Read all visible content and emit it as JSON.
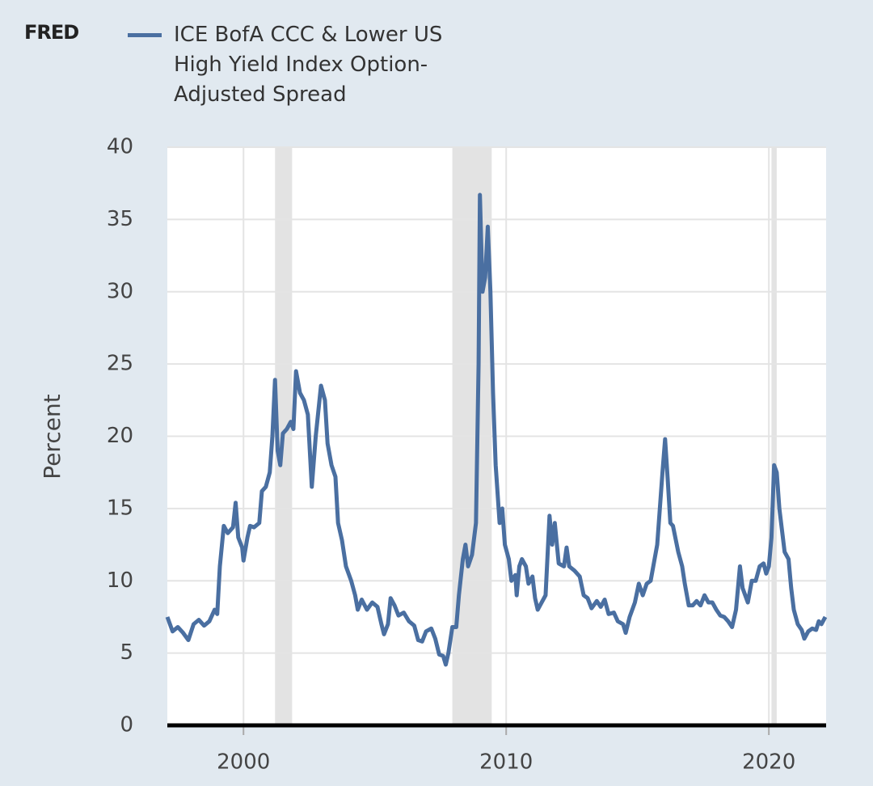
{
  "chart_data": {
    "type": "line",
    "logo": "FRED",
    "ylabel": "Percent",
    "x": [
      1997.1,
      1997.3,
      1997.5,
      1997.7,
      1997.9,
      1998.1,
      1998.3,
      1998.5,
      1998.7,
      1998.9,
      1999.0,
      1999.1,
      1999.25,
      1999.4,
      1999.6,
      1999.7,
      1999.8,
      1999.95,
      2000.0,
      2000.15,
      2000.25,
      2000.4,
      2000.6,
      2000.7,
      2000.85,
      2001.0,
      2001.1,
      2001.2,
      2001.3,
      2001.4,
      2001.5,
      2001.65,
      2001.8,
      2001.9,
      2002.0,
      2002.15,
      2002.3,
      2002.45,
      2002.6,
      2002.75,
      2002.95,
      2003.1,
      2003.2,
      2003.35,
      2003.5,
      2003.6,
      2003.75,
      2003.9,
      2004.1,
      2004.25,
      2004.35,
      2004.5,
      2004.7,
      2004.9,
      2005.1,
      2005.25,
      2005.35,
      2005.5,
      2005.6,
      2005.75,
      2005.9,
      2006.1,
      2006.3,
      2006.5,
      2006.65,
      2006.8,
      2006.95,
      2007.15,
      2007.3,
      2007.45,
      2007.6,
      2007.7,
      2007.8,
      2007.95,
      2008.1,
      2008.2,
      2008.35,
      2008.45,
      2008.55,
      2008.7,
      2008.85,
      2008.95,
      2009.0,
      2009.1,
      2009.2,
      2009.3,
      2009.4,
      2009.5,
      2009.6,
      2009.75,
      2009.85,
      2009.95,
      2010.1,
      2010.2,
      2010.35,
      2010.4,
      2010.5,
      2010.6,
      2010.75,
      2010.85,
      2011.0,
      2011.1,
      2011.2,
      2011.35,
      2011.5,
      2011.65,
      2011.75,
      2011.85,
      2012.0,
      2012.2,
      2012.3,
      2012.4,
      2012.6,
      2012.8,
      2012.95,
      2013.1,
      2013.25,
      2013.45,
      2013.6,
      2013.75,
      2013.9,
      2014.1,
      2014.25,
      2014.45,
      2014.55,
      2014.7,
      2014.9,
      2015.05,
      2015.2,
      2015.35,
      2015.5,
      2015.65,
      2015.75,
      2015.85,
      2015.95,
      2016.05,
      2016.15,
      2016.25,
      2016.35,
      2016.55,
      2016.7,
      2016.8,
      2016.95,
      2017.1,
      2017.25,
      2017.4,
      2017.55,
      2017.7,
      2017.85,
      2018.0,
      2018.15,
      2018.3,
      2018.45,
      2018.6,
      2018.75,
      2018.9,
      2019.0,
      2019.1,
      2019.2,
      2019.35,
      2019.5,
      2019.65,
      2019.8,
      2019.9,
      2020.0,
      2020.1,
      2020.2,
      2020.3,
      2020.4,
      2020.5,
      2020.6,
      2020.75,
      2020.85,
      2020.95,
      2021.1,
      2021.25,
      2021.35,
      2021.5,
      2021.65,
      2021.8,
      2021.9,
      2022.0,
      2022.15
    ],
    "series": [
      {
        "name": "ICE BofA CCC & Lower US High Yield Index Option-Adjusted Spread",
        "color": "#4a6fa1",
        "values": [
          7.5,
          6.5,
          6.8,
          6.4,
          5.9,
          7.0,
          7.3,
          6.9,
          7.2,
          8.0,
          7.7,
          11.0,
          13.8,
          13.3,
          13.7,
          15.4,
          13.0,
          12.3,
          11.4,
          13.0,
          13.8,
          13.7,
          14.0,
          16.2,
          16.5,
          17.5,
          20.0,
          23.9,
          19.0,
          18.0,
          20.2,
          20.5,
          21.0,
          20.5,
          24.5,
          23.0,
          22.5,
          21.5,
          16.5,
          20.0,
          23.5,
          22.5,
          19.5,
          18.0,
          17.2,
          14.0,
          12.8,
          11.0,
          10.0,
          9.0,
          8.0,
          8.7,
          8.0,
          8.5,
          8.2,
          7.0,
          6.3,
          7.0,
          8.8,
          8.3,
          7.6,
          7.8,
          7.2,
          6.9,
          5.9,
          5.8,
          6.5,
          6.7,
          6.0,
          4.9,
          4.8,
          4.2,
          5.0,
          6.8,
          6.8,
          9.0,
          11.5,
          12.5,
          11.0,
          11.8,
          14.0,
          25.0,
          36.7,
          30.0,
          31.0,
          34.5,
          30.0,
          23.0,
          18.0,
          14.0,
          15.0,
          12.5,
          11.5,
          10.0,
          10.4,
          9.0,
          11.0,
          11.5,
          11.0,
          9.8,
          10.3,
          8.8,
          8.0,
          8.5,
          9.0,
          14.5,
          12.5,
          14.0,
          11.2,
          11.0,
          12.3,
          11.0,
          10.7,
          10.3,
          9.0,
          8.8,
          8.1,
          8.6,
          8.2,
          8.7,
          7.7,
          7.8,
          7.2,
          7.0,
          6.4,
          7.5,
          8.5,
          9.8,
          9.0,
          9.8,
          10.0,
          11.5,
          12.5,
          15.0,
          17.5,
          19.8,
          17.0,
          14.0,
          13.8,
          12.0,
          11.0,
          9.8,
          8.3,
          8.3,
          8.6,
          8.3,
          9.0,
          8.5,
          8.5,
          8.0,
          7.6,
          7.5,
          7.2,
          6.8,
          8.0,
          11.0,
          9.5,
          9.0,
          8.5,
          10.0,
          10.0,
          11.0,
          11.2,
          10.5,
          11.0,
          13.0,
          18.0,
          17.5,
          15.0,
          13.5,
          12.0,
          11.5,
          9.5,
          8.0,
          7.0,
          6.6,
          6.0,
          6.5,
          6.7,
          6.6,
          7.2,
          7.0,
          7.5
        ]
      }
    ],
    "recessions": [
      [
        2001.2,
        2001.85
      ],
      [
        2007.95,
        2009.45
      ],
      [
        2020.1,
        2020.3
      ]
    ],
    "xlim": [
      1997.1,
      2022.18
    ],
    "xticks": [
      2000,
      2010,
      2020
    ],
    "ylim": [
      0,
      40
    ],
    "yticks": [
      0,
      5,
      10,
      15,
      20,
      25,
      30,
      35,
      40
    ],
    "grid": true
  }
}
